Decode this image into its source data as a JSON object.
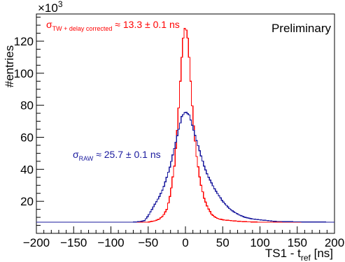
{
  "chart_data": {
    "type": "line",
    "xlabel_main": "TS1 - t",
    "xlabel_sub": "ref",
    "xlabel_unit": " [ns]",
    "ylabel": "#entries",
    "ymultiplier": "×10",
    "ymultiplier_exp": "3",
    "xlim": [
      -200,
      200
    ],
    "ylim": [
      0,
      137
    ],
    "xticks": [
      "-200",
      "-150",
      "-100",
      "-50",
      "0",
      "50",
      "100",
      "150",
      "200"
    ],
    "yticks": [
      "20",
      "40",
      "60",
      "80",
      "100",
      "120"
    ],
    "annotation_top_right": "Preliminary",
    "colors": {
      "red": "#ff0000",
      "blue": "#1a1a9e"
    },
    "series": [
      {
        "name": "TW + delay corrected",
        "label_sigma": "σ",
        "label_sub": "TW + delay corrected",
        "label_rest": " ≈ 13.3 ± 0.1 ns",
        "color": "#ff0000",
        "x": [
          -200,
          -150,
          -100,
          -70,
          -60,
          -50,
          -45,
          -40,
          -35,
          -30,
          -25,
          -20,
          -15,
          -10,
          -7,
          -5,
          -3,
          -1,
          0,
          1,
          3,
          5,
          7,
          10,
          15,
          20,
          25,
          30,
          35,
          40,
          45,
          50,
          60,
          70,
          80,
          100,
          150,
          200
        ],
        "y": [
          7,
          7,
          7,
          7,
          7,
          7,
          7.5,
          8,
          9,
          11,
          15,
          25,
          42,
          70,
          95,
          110,
          122,
          128,
          129,
          127,
          122,
          110,
          95,
          72,
          48,
          32,
          22,
          16,
          12,
          10,
          9,
          8.5,
          8,
          7.6,
          7.3,
          7,
          7,
          7
        ]
      },
      {
        "name": "RAW",
        "label_sigma": "σ",
        "label_sub": "RAW",
        "label_rest": " ≈ 25.7 ± 0.1 ns",
        "color": "#1a1a9e",
        "x": [
          -200,
          -150,
          -100,
          -70,
          -60,
          -55,
          -50,
          -45,
          -40,
          -35,
          -30,
          -25,
          -20,
          -15,
          -10,
          -5,
          0,
          5,
          10,
          15,
          20,
          25,
          30,
          40,
          50,
          60,
          70,
          80,
          90,
          100,
          110,
          120,
          150,
          200
        ],
        "y": [
          7,
          7,
          7,
          7,
          7.5,
          8,
          11,
          15,
          19,
          23,
          28,
          35,
          43,
          53,
          63,
          73,
          76,
          74,
          66,
          58,
          50,
          42,
          36,
          27,
          20,
          15,
          12,
          10,
          9,
          8.5,
          8,
          7.5,
          7.2,
          7
        ]
      }
    ]
  }
}
